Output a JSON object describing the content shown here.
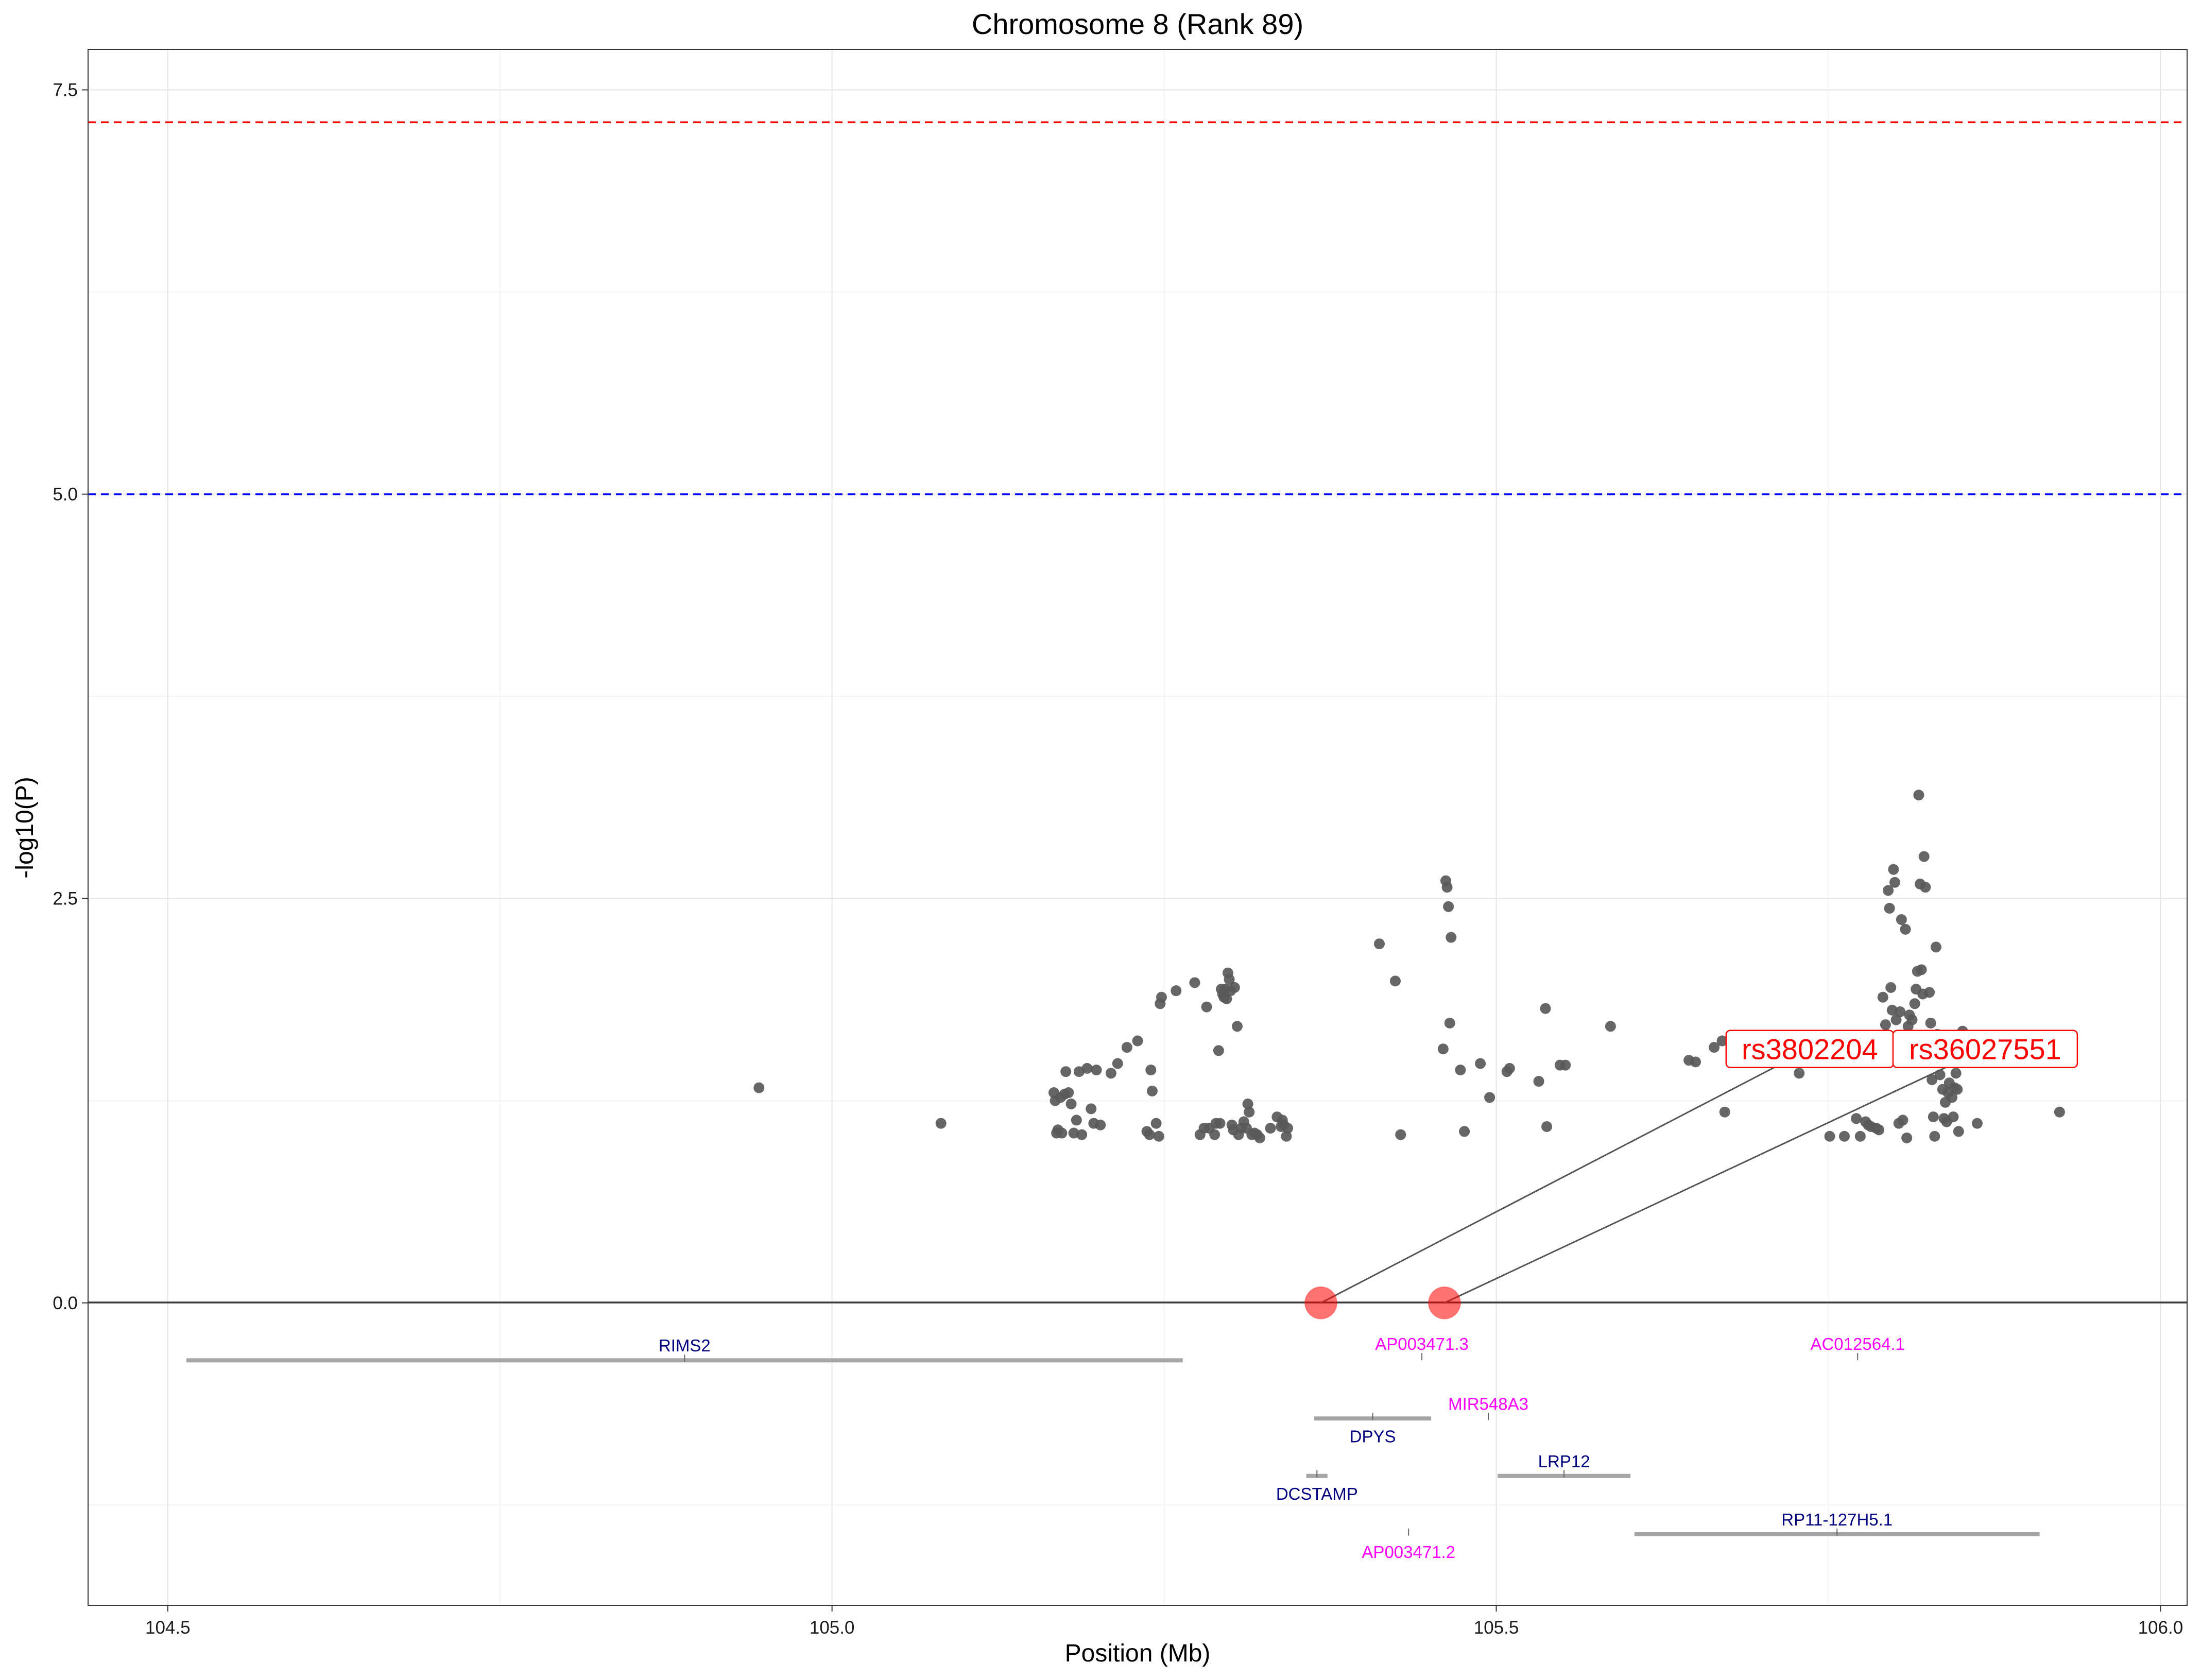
{
  "chart_data": {
    "type": "scatter",
    "title": "Chromosome 8 (Rank 89)",
    "xlabel": "Position (Mb)",
    "ylabel": "-log10(P)",
    "xlim": [
      104.44,
      106.02
    ],
    "ylim": [
      -1.87,
      7.75
    ],
    "x_ticks": [
      104.5,
      105.0,
      105.5,
      106.0
    ],
    "x_tick_labels": [
      "104.5",
      "105.0",
      "105.5",
      "106.0"
    ],
    "y_ticks": [
      0,
      2.5,
      5,
      7.5
    ],
    "y_tick_labels": [
      "0.0",
      "2.5",
      "5.0",
      "7.5"
    ],
    "grid": true,
    "thresholds": [
      {
        "value": 7.3,
        "color": "#ff0000",
        "style": "dashed"
      },
      {
        "value": 5.0,
        "color": "#0000ff",
        "style": "dashed"
      }
    ],
    "point_color": "#595959",
    "points": [
      [
        104.945,
        1.33
      ],
      [
        105.082,
        1.11
      ],
      [
        105.167,
        1.3
      ],
      [
        105.168,
        1.25
      ],
      [
        105.169,
        1.05
      ],
      [
        105.17,
        1.07
      ],
      [
        105.172,
        1.27
      ],
      [
        105.173,
        1.05
      ],
      [
        105.175,
        1.29
      ],
      [
        105.176,
        1.43
      ],
      [
        105.178,
        1.3
      ],
      [
        105.18,
        1.23
      ],
      [
        105.182,
        1.05
      ],
      [
        105.184,
        1.13
      ],
      [
        105.186,
        1.43
      ],
      [
        105.188,
        1.04
      ],
      [
        105.192,
        1.45
      ],
      [
        105.195,
        1.2
      ],
      [
        105.197,
        1.11
      ],
      [
        105.199,
        1.44
      ],
      [
        105.202,
        1.1
      ],
      [
        105.21,
        1.42
      ],
      [
        105.215,
        1.48
      ],
      [
        105.222,
        1.58
      ],
      [
        105.23,
        1.62
      ],
      [
        105.237,
        1.06
      ],
      [
        105.239,
        1.04
      ],
      [
        105.24,
        1.44
      ],
      [
        105.241,
        1.31
      ],
      [
        105.244,
        1.11
      ],
      [
        105.246,
        1.03
      ],
      [
        105.247,
        1.85
      ],
      [
        105.248,
        1.89
      ],
      [
        105.259,
        1.93
      ],
      [
        105.273,
        1.98
      ],
      [
        105.277,
        1.04
      ],
      [
        105.28,
        1.08
      ],
      [
        105.282,
        1.83
      ],
      [
        105.284,
        1.08
      ],
      [
        105.288,
        1.04
      ],
      [
        105.289,
        1.11
      ],
      [
        105.291,
        1.56
      ],
      [
        105.292,
        1.11
      ],
      [
        105.293,
        1.94
      ],
      [
        105.294,
        1.91
      ],
      [
        105.295,
        1.89
      ],
      [
        105.296,
        1.94
      ],
      [
        105.297,
        1.88
      ],
      [
        105.298,
        2.04
      ],
      [
        105.299,
        2.0
      ],
      [
        105.3,
        1.93
      ],
      [
        105.301,
        1.1
      ],
      [
        105.302,
        1.07
      ],
      [
        105.303,
        1.95
      ],
      [
        105.305,
        1.71
      ],
      [
        105.306,
        1.04
      ],
      [
        105.308,
        1.08
      ],
      [
        105.31,
        1.12
      ],
      [
        105.312,
        1.08
      ],
      [
        105.313,
        1.23
      ],
      [
        105.314,
        1.18
      ],
      [
        105.316,
        1.04
      ],
      [
        105.318,
        1.05
      ],
      [
        105.32,
        1.04
      ],
      [
        105.322,
        1.02
      ],
      [
        105.33,
        1.08
      ],
      [
        105.335,
        1.15
      ],
      [
        105.338,
        1.09
      ],
      [
        105.339,
        1.13
      ],
      [
        105.34,
        1.1
      ],
      [
        105.342,
        1.03
      ],
      [
        105.343,
        1.08
      ],
      [
        105.412,
        2.22
      ],
      [
        105.424,
        1.99
      ],
      [
        105.428,
        1.04
      ],
      [
        105.46,
        1.57
      ],
      [
        105.462,
        2.61
      ],
      [
        105.463,
        2.57
      ],
      [
        105.464,
        2.45
      ],
      [
        105.465,
        1.73
      ],
      [
        105.466,
        2.26
      ],
      [
        105.473,
        1.44
      ],
      [
        105.476,
        1.06
      ],
      [
        105.488,
        1.48
      ],
      [
        105.495,
        1.27
      ],
      [
        105.508,
        1.43
      ],
      [
        105.51,
        1.45
      ],
      [
        105.532,
        1.37
      ],
      [
        105.537,
        1.82
      ],
      [
        105.538,
        1.09
      ],
      [
        105.548,
        1.47
      ],
      [
        105.552,
        1.47
      ],
      [
        105.586,
        1.71
      ],
      [
        105.645,
        1.5
      ],
      [
        105.65,
        1.49
      ],
      [
        105.664,
        1.58
      ],
      [
        105.67,
        1.62
      ],
      [
        105.672,
        1.18
      ],
      [
        105.693,
        1.57
      ],
      [
        105.728,
        1.42
      ],
      [
        105.73,
        1.55
      ],
      [
        105.751,
        1.03
      ],
      [
        105.762,
        1.03
      ],
      [
        105.771,
        1.14
      ],
      [
        105.774,
        1.03
      ],
      [
        105.778,
        1.12
      ],
      [
        105.78,
        1.1
      ],
      [
        105.782,
        1.09
      ],
      [
        105.786,
        1.08
      ],
      [
        105.788,
        1.07
      ],
      [
        105.79,
        1.6
      ],
      [
        105.791,
        1.89
      ],
      [
        105.793,
        1.72
      ],
      [
        105.794,
        1.66
      ],
      [
        105.795,
        2.55
      ],
      [
        105.796,
        2.44
      ],
      [
        105.797,
        1.95
      ],
      [
        105.798,
        1.81
      ],
      [
        105.799,
        2.68
      ],
      [
        105.8,
        2.6
      ],
      [
        105.801,
        1.75
      ],
      [
        105.802,
        1.6
      ],
      [
        105.803,
        1.11
      ],
      [
        105.804,
        1.8
      ],
      [
        105.805,
        2.37
      ],
      [
        105.806,
        1.13
      ],
      [
        105.807,
        1.65
      ],
      [
        105.808,
        2.31
      ],
      [
        105.809,
        1.02
      ],
      [
        105.81,
        1.71
      ],
      [
        105.811,
        1.78
      ],
      [
        105.812,
        1.58
      ],
      [
        105.813,
        1.75
      ],
      [
        105.814,
        1.52
      ],
      [
        105.815,
        1.85
      ],
      [
        105.816,
        1.94
      ],
      [
        105.817,
        2.05
      ],
      [
        105.818,
        3.14
      ],
      [
        105.819,
        2.59
      ],
      [
        105.82,
        2.06
      ],
      [
        105.821,
        1.91
      ],
      [
        105.822,
        2.76
      ],
      [
        105.823,
        2.57
      ],
      [
        105.824,
        1.62
      ],
      [
        105.825,
        1.51
      ],
      [
        105.826,
        1.92
      ],
      [
        105.827,
        1.73
      ],
      [
        105.828,
        1.38
      ],
      [
        105.829,
        1.15
      ],
      [
        105.83,
        1.03
      ],
      [
        105.831,
        2.2
      ],
      [
        105.832,
        1.66
      ],
      [
        105.833,
        1.5
      ],
      [
        105.834,
        1.41
      ],
      [
        105.835,
        1.58
      ],
      [
        105.836,
        1.32
      ],
      [
        105.837,
        1.14
      ],
      [
        105.838,
        1.24
      ],
      [
        105.839,
        1.12
      ],
      [
        105.84,
        1.3
      ],
      [
        105.841,
        1.36
      ],
      [
        105.842,
        1.58
      ],
      [
        105.843,
        1.27
      ],
      [
        105.844,
        1.15
      ],
      [
        105.845,
        1.33
      ],
      [
        105.846,
        1.42
      ],
      [
        105.847,
        1.32
      ],
      [
        105.848,
        1.06
      ],
      [
        105.851,
        1.68
      ],
      [
        105.852,
        1.57
      ],
      [
        105.862,
        1.11
      ],
      [
        105.863,
        1.53
      ],
      [
        105.924,
        1.18
      ]
    ],
    "highlighted_snps": [
      {
        "name": "rs3802204",
        "x": 105.368,
        "y": 0.0,
        "label_x": 105.736,
        "label_y": 1.57
      },
      {
        "name": "rs36027551",
        "x": 105.461,
        "y": 0.0,
        "label_x": 105.868,
        "label_y": 1.57
      }
    ],
    "highlight_color": "#ff0000",
    "genes": [
      {
        "name": "RIMS2",
        "start": 104.514,
        "end": 105.264,
        "y": -0.355,
        "label_pos": "above",
        "color": "#00007f"
      },
      {
        "name": "AP003471.3",
        "start": 105.444,
        "end": 105.444,
        "y": -0.345,
        "label_pos": "above",
        "color": "#ff00ff"
      },
      {
        "name": "AC012564.1",
        "start": 105.772,
        "end": 105.772,
        "y": -0.345,
        "label_pos": "above",
        "color": "#ff00ff"
      },
      {
        "name": "MIR548A3",
        "start": 105.494,
        "end": 105.494,
        "y": -0.715,
        "label_pos": "above",
        "color": "#ff00ff"
      },
      {
        "name": "DPYS",
        "start": 105.363,
        "end": 105.451,
        "y": -0.715,
        "label_pos": "below",
        "color": "#00007f"
      },
      {
        "name": "LRP12",
        "start": 105.501,
        "end": 105.601,
        "y": -1.07,
        "label_pos": "above",
        "color": "#00007f"
      },
      {
        "name": "DCSTAMP",
        "start": 105.357,
        "end": 105.373,
        "y": -1.07,
        "label_pos": "below",
        "color": "#00007f"
      },
      {
        "name": "RP11-127H5.1",
        "start": 105.604,
        "end": 105.909,
        "y": -1.43,
        "label_pos": "above",
        "color": "#00007f"
      },
      {
        "name": "AP003471.2",
        "start": 105.434,
        "end": 105.434,
        "y": -1.43,
        "label_pos": "below",
        "color": "#ff00ff"
      }
    ]
  }
}
